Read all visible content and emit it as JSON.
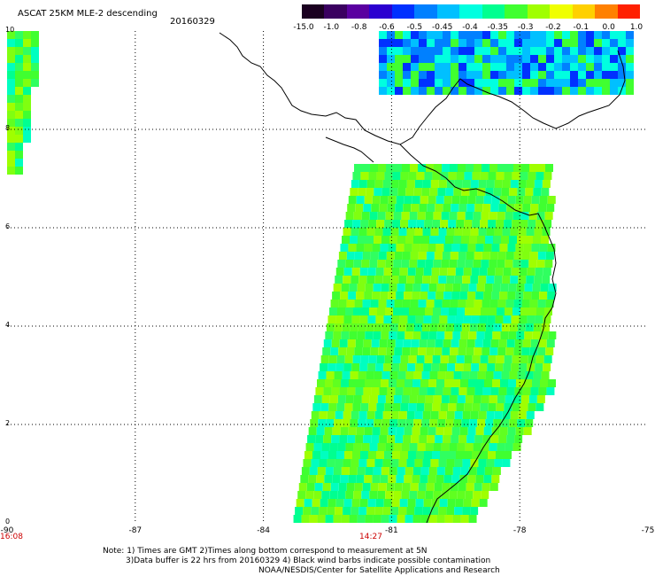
{
  "header": {
    "title": "ASCAT 25KM MLE-2 descending",
    "date": "20160329"
  },
  "colorbar": {
    "tick_labels": [
      "-15.0",
      "-1.0",
      "-0.8",
      "-0.6",
      "-0.5",
      "-0.45",
      "-0.4",
      "-0.35",
      "-0.3",
      "-0.2",
      "-0.1",
      "0.0",
      "1.0"
    ],
    "colors": [
      "#1a0020",
      "#3a0060",
      "#5a00a0",
      "#2b00d0",
      "#0030ff",
      "#0080ff",
      "#00c0ff",
      "#00ffe0",
      "#00ff90",
      "#40ff30",
      "#a0ff00",
      "#f0ff00",
      "#ffd000",
      "#ff8000",
      "#ff2000"
    ]
  },
  "axes": {
    "x_ticks": [
      "-90",
      "-87",
      "-84",
      "-81",
      "-78",
      "-75"
    ],
    "y_ticks": [
      "10",
      "8",
      "6",
      "4",
      "2",
      "0"
    ]
  },
  "times": {
    "left": "16:08",
    "center": "14:27"
  },
  "notes": [
    "Note: 1) Times are GMT 2)Times along bottom correspond to measurement at 5N",
    "3)Data buffer is 22 hrs from 20160329 4) Black wind barbs indicate possible contamination",
    "NOAA/NESDIS/Center for Satellite Applications and Research"
  ]
}
